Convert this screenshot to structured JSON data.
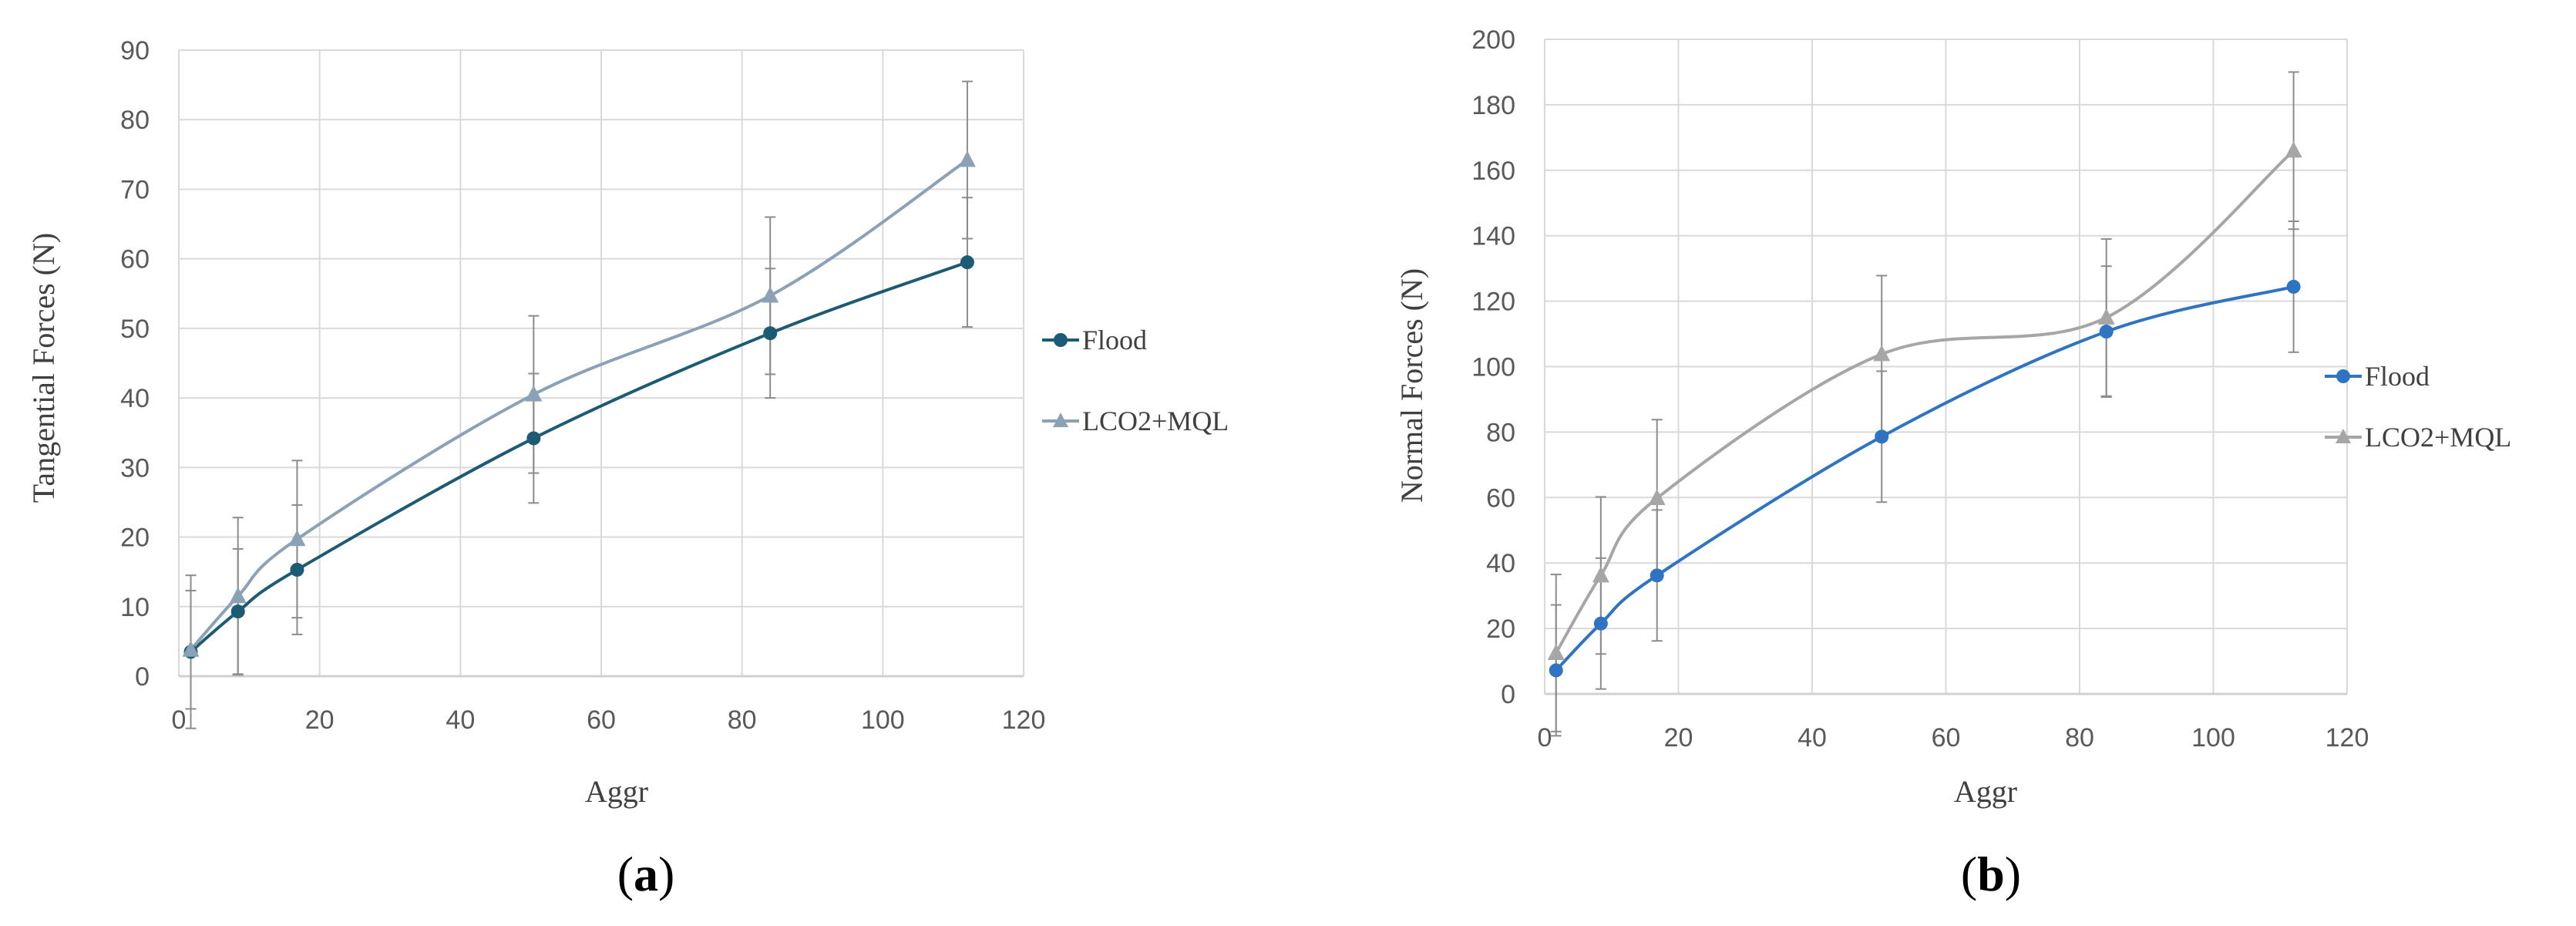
{
  "chart_data": [
    {
      "type": "line",
      "panel_label": "a",
      "title": "",
      "xlabel": "Aggr",
      "ylabel": "Tangential Forces (N)",
      "xlim": [
        0,
        120
      ],
      "ylim": [
        0,
        90
      ],
      "xticks": [
        0,
        20,
        40,
        60,
        80,
        100,
        120
      ],
      "yticks": [
        0,
        10,
        20,
        30,
        40,
        50,
        60,
        70,
        80,
        90
      ],
      "grid": true,
      "legend_position": "right",
      "series": [
        {
          "name": "Flood",
          "color": "#1d5a73",
          "marker": "circle",
          "points": [
            {
              "x": 1.7,
              "y": 3.5,
              "err": 11
            },
            {
              "x": 8.4,
              "y": 9.3,
              "err": 9
            },
            {
              "x": 16.8,
              "y": 15.3,
              "err": 9.3
            },
            {
              "x": 50.4,
              "y": 34.2,
              "err": 9.3
            },
            {
              "x": 84,
              "y": 49.3,
              "err": 9.3
            },
            {
              "x": 112,
              "y": 59.5,
              "err": 9.3
            }
          ]
        },
        {
          "name": "LCO2+MQL",
          "color": "#8ba2b6",
          "marker": "triangle",
          "points": [
            {
              "x": 1.7,
              "y": 3.8,
              "err": 8.5
            },
            {
              "x": 8.4,
              "y": 11.5,
              "err": 11.3
            },
            {
              "x": 16.8,
              "y": 19.7,
              "err": 11.3
            },
            {
              "x": 50.4,
              "y": 40.5,
              "err": 11.3
            },
            {
              "x": 84,
              "y": 54.7,
              "err": 11.3
            },
            {
              "x": 112,
              "y": 74.2,
              "err": 11.3
            }
          ]
        }
      ]
    },
    {
      "type": "line",
      "panel_label": "b",
      "title": "",
      "xlabel": "Aggr",
      "ylabel": "Normal Forces (N)",
      "xlim": [
        0,
        120
      ],
      "ylim": [
        0,
        200
      ],
      "xticks": [
        0,
        20,
        40,
        60,
        80,
        100,
        120
      ],
      "yticks": [
        0,
        20,
        40,
        60,
        80,
        100,
        120,
        140,
        160,
        180,
        200
      ],
      "grid": true,
      "legend_position": "right",
      "series": [
        {
          "name": "Flood",
          "color": "#2e74c2",
          "marker": "circle",
          "points": [
            {
              "x": 1.7,
              "y": 7.2,
              "err": 20
            },
            {
              "x": 8.4,
              "y": 21.5,
              "err": 20
            },
            {
              "x": 16.8,
              "y": 36.2,
              "err": 20
            },
            {
              "x": 50.4,
              "y": 78.6,
              "err": 20
            },
            {
              "x": 84,
              "y": 110.7,
              "err": 20
            },
            {
              "x": 112,
              "y": 124.4,
              "err": 20
            }
          ]
        },
        {
          "name": "LCO2+MQL",
          "color": "#a6a6a6",
          "marker": "triangle",
          "points": [
            {
              "x": 1.7,
              "y": 12.5,
              "err": 24
            },
            {
              "x": 8.4,
              "y": 36.2,
              "err": 24
            },
            {
              "x": 16.8,
              "y": 59.8,
              "err": 24
            },
            {
              "x": 50.4,
              "y": 103.8,
              "err": 24
            },
            {
              "x": 84,
              "y": 115,
              "err": 24
            },
            {
              "x": 112,
              "y": 166,
              "err": 24
            }
          ]
        }
      ]
    }
  ],
  "colors": {
    "grid": "#d9d9d9",
    "axis": "#d0d0d0",
    "errorbar": "#8c8c8c"
  }
}
